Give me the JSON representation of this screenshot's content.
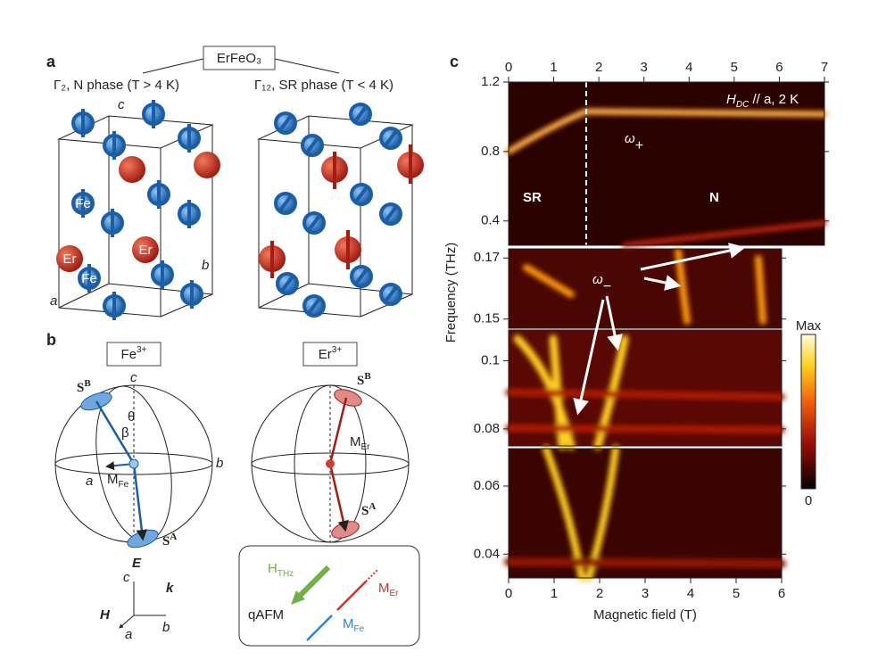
{
  "panel_a": {
    "label": "a",
    "compound": "ErFeO₃",
    "left_title": "Γ₂, N phase (T > 4 K)",
    "right_title": "Γ₁₂, SR phase (T < 4 K)",
    "axis_c": "c",
    "axis_b": "b",
    "axis_a": "a",
    "atoms": [
      "Fe",
      "Er",
      "Er",
      "Fe"
    ]
  },
  "panel_b": {
    "label": "b",
    "fe_title": {
      "text": "Fe",
      "sup": "3+"
    },
    "er_title": {
      "text": "Er",
      "sup": "3+"
    },
    "fe_sphere": {
      "c": "c",
      "theta": "θ",
      "beta": "β",
      "b": "b",
      "a": "a",
      "sb": {
        "text": "S",
        "sup": "B"
      },
      "sa": {
        "text": "S",
        "sup": "A"
      },
      "m": {
        "text": "M",
        "sub": "Fe"
      }
    },
    "er_sphere": {
      "sb": {
        "text": "S",
        "sup": "B"
      },
      "sa": {
        "text": "S",
        "sup": "A"
      },
      "m": {
        "text": "M",
        "sub": "Er"
      }
    },
    "axes": {
      "E": "E",
      "k": "k",
      "H": "H",
      "c": "c",
      "b": "b",
      "a": "a"
    },
    "legend": {
      "h": {
        "text": "H",
        "sub": "THz"
      },
      "m_er": {
        "text": "M",
        "sub": "Er"
      },
      "m_fe": {
        "text": "M",
        "sub": "Fe"
      },
      "qafm": "qAFM"
    }
  },
  "panel_c": {
    "label": "c",
    "x_label": "Magnetic field (T)",
    "y_label": "Frequency (THz)",
    "top_xlim": [
      0,
      7
    ],
    "top_xticks": [
      0,
      1,
      2,
      3,
      4,
      5,
      6,
      7
    ],
    "bottom_xlim": [
      0,
      6
    ],
    "bottom_xticks": [
      0,
      1,
      2,
      3,
      4,
      5,
      6
    ],
    "subpanels": [
      {
        "ylim": [
          0.26,
          1.2
        ],
        "yticks": [
          0.4,
          0.8,
          1.2
        ]
      },
      {
        "ylim": [
          0.147,
          0.173
        ],
        "yticks": [
          0.15,
          0.17
        ]
      },
      {
        "ylim": [
          0.075,
          0.109
        ],
        "yticks": [
          0.08,
          0.1
        ]
      },
      {
        "ylim": [
          0.033,
          0.071
        ],
        "yticks": [
          0.04,
          0.06
        ]
      }
    ],
    "condition": {
      "text": "H",
      "sub": "DC",
      "rest": " // a, 2 K"
    },
    "omega_plus": {
      "text": "ω",
      "sub": "+"
    },
    "omega_minus": {
      "text": "ω",
      "sub": "−"
    },
    "sr": "SR",
    "n": "N",
    "colorbar": {
      "max": "Max",
      "min": "0"
    }
  }
}
